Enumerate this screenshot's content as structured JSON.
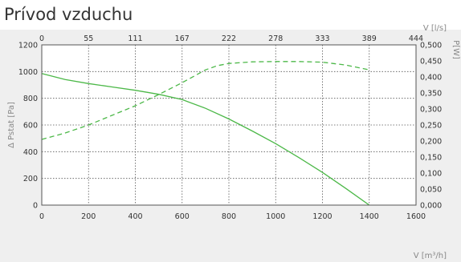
{
  "title": "Prívod vzduchu",
  "chart_data": {
    "type": "line",
    "title": "Prívod vzduchu",
    "x_axis": {
      "label": "V [m³/h]",
      "range": [
        0,
        1600
      ],
      "ticks": [
        0,
        200,
        400,
        600,
        800,
        1000,
        1200,
        1400,
        1600
      ]
    },
    "x2_axis": {
      "label": "V [l/s]",
      "range": [
        0,
        444
      ],
      "ticks": [
        "0",
        "55",
        "111",
        "167",
        "222",
        "278",
        "333",
        "389",
        "444"
      ]
    },
    "y_axis": {
      "label": "Δ Pstat [Pa]",
      "range": [
        0,
        1200
      ],
      "ticks": [
        0,
        200,
        400,
        600,
        800,
        1000,
        1200
      ]
    },
    "y2_axis": {
      "label": "P[W]",
      "range": [
        0,
        0.5
      ],
      "ticks": [
        "0,000",
        "0,050",
        "0,100",
        "0,150",
        "0,200",
        "0,250",
        "0,300",
        "0,350",
        "0,400",
        "0,450",
        "0,500"
      ]
    },
    "grid": true,
    "series": [
      {
        "axis": "left",
        "style": "solid",
        "color": "#4cb848",
        "x": [
          0,
          100,
          200,
          300,
          400,
          500,
          600,
          700,
          800,
          900,
          1000,
          1100,
          1200,
          1300,
          1400
        ],
        "y": [
          985,
          940,
          910,
          885,
          860,
          830,
          790,
          725,
          645,
          555,
          460,
          355,
          245,
          125,
          0
        ]
      },
      {
        "axis": "right",
        "style": "dashed",
        "color": "#4cb848",
        "x": [
          0,
          100,
          200,
          300,
          400,
          500,
          600,
          700,
          750,
          800,
          900,
          1000,
          1100,
          1200,
          1300,
          1400
        ],
        "y": [
          0.205,
          0.225,
          0.25,
          0.28,
          0.31,
          0.345,
          0.382,
          0.422,
          0.435,
          0.442,
          0.447,
          0.448,
          0.448,
          0.446,
          0.437,
          0.422
        ]
      }
    ]
  }
}
